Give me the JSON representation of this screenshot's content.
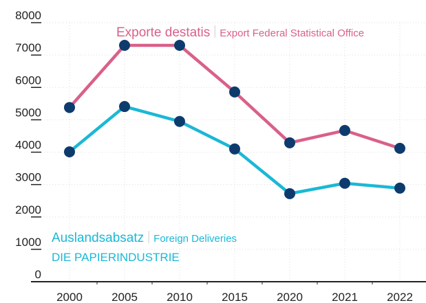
{
  "chart_data": {
    "type": "line",
    "categories": [
      "2000",
      "2005",
      "2010",
      "2015",
      "2020",
      "2021",
      "2022"
    ],
    "series": [
      {
        "name": "Exporte destatis",
        "name_en": "Export Federal Statistical Office",
        "color": "#d9608a",
        "values": [
          5380,
          7300,
          7300,
          5860,
          4290,
          4670,
          4120
        ]
      },
      {
        "name": "Auslandsabsatz",
        "name_en": "Foreign Deliveries",
        "color": "#1ab8d6",
        "values": [
          4010,
          5410,
          4950,
          4100,
          2720,
          3040,
          2890
        ]
      }
    ],
    "source": "DIE PAPIERINDUSTRIE",
    "marker_color": "#0d3b6e",
    "ylim": [
      0,
      8000
    ],
    "yticks": [
      0,
      1000,
      2000,
      3000,
      4000,
      5000,
      6000,
      7000,
      8000
    ],
    "grid": true
  }
}
